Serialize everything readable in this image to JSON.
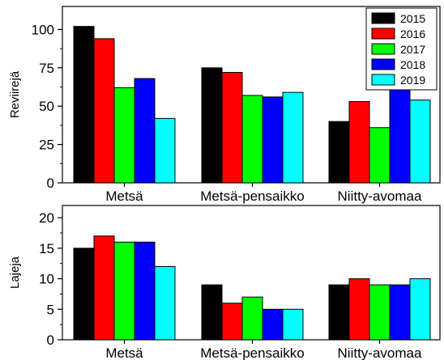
{
  "chart_data": [
    {
      "type": "bar",
      "ylabel": "Reviirejä",
      "categories": [
        "Metsä",
        "Metsä-pensaikko",
        "Niitty-avomaa"
      ],
      "series": [
        {
          "name": "2015",
          "color": "#000000",
          "values": [
            102,
            75,
            40
          ]
        },
        {
          "name": "2016",
          "color": "#ff0000",
          "values": [
            94,
            72,
            53
          ]
        },
        {
          "name": "2017",
          "color": "#00ff00",
          "values": [
            62,
            57,
            36
          ]
        },
        {
          "name": "2018",
          "color": "#0000ff",
          "values": [
            68,
            56,
            61
          ]
        },
        {
          "name": "2019",
          "color": "#00ffff",
          "values": [
            42,
            59,
            54
          ]
        }
      ],
      "ylim": [
        0,
        115
      ],
      "yticks": [
        0,
        25,
        50,
        75,
        100
      ],
      "legend": "top-right",
      "grid": false
    },
    {
      "type": "bar",
      "ylabel": "Lajeja",
      "categories": [
        "Metsä",
        "Metsä-pensaikko",
        "Niitty-avomaa"
      ],
      "series": [
        {
          "name": "2015",
          "color": "#000000",
          "values": [
            15,
            9,
            9
          ]
        },
        {
          "name": "2016",
          "color": "#ff0000",
          "values": [
            17,
            6,
            10
          ]
        },
        {
          "name": "2017",
          "color": "#00ff00",
          "values": [
            16,
            7,
            9
          ]
        },
        {
          "name": "2018",
          "color": "#0000ff",
          "values": [
            16,
            5,
            9
          ]
        },
        {
          "name": "2019",
          "color": "#00ffff",
          "values": [
            12,
            5,
            10
          ]
        }
      ],
      "ylim": [
        0,
        22
      ],
      "yticks": [
        0,
        5,
        10,
        15,
        20
      ],
      "grid": false
    }
  ]
}
